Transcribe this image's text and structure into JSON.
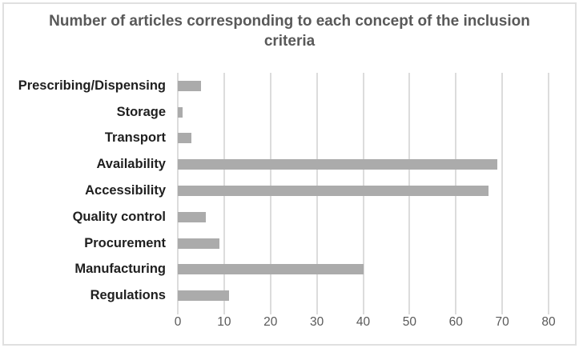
{
  "chart": {
    "title": "Number of articles corresponding to each concept of the inclusion criteria"
  },
  "chart_data": {
    "type": "bar",
    "orientation": "horizontal",
    "title": "Number of articles corresponding to each concept of the inclusion criteria",
    "categories": [
      "Prescribing/Dispensing",
      "Storage",
      "Transport",
      "Availability",
      "Accessibility",
      "Quality control",
      "Procurement",
      "Manufacturing",
      "Regulations"
    ],
    "values": [
      5,
      1,
      3,
      69,
      67,
      6,
      9,
      40,
      11
    ],
    "xlabel": "",
    "ylabel": "",
    "xlim": [
      0,
      80
    ],
    "xticks": [
      0,
      10,
      20,
      30,
      40,
      50,
      60,
      70,
      80
    ],
    "grid": true,
    "legend": false,
    "colors": {
      "bar": "#ababab",
      "gridline": "#dcdcdc",
      "title": "#595959",
      "category_label": "#1f1f1f",
      "tick_label": "#595959",
      "frame_border": "#e0e0e0",
      "background": "#ffffff"
    }
  }
}
